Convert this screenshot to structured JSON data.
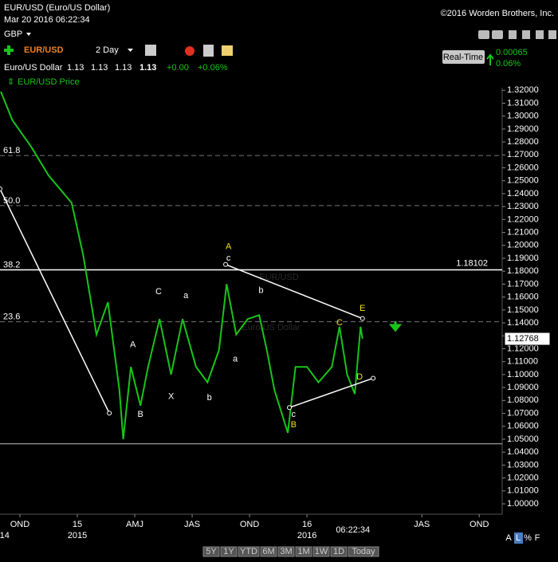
{
  "header": {
    "title": "EUR/USD (Euro/US Dollar)",
    "timestamp": "Mar 20 2016 06:22:34",
    "copyright": "©2016 Worden Brothers, Inc.",
    "currency": "GBP",
    "symbol": "EUR/USD",
    "period": "2 Day",
    "realtime": "Real-Time",
    "change": "0.00065",
    "change_pct": "0.06%"
  },
  "quote": {
    "name": "Euro/US Dollar",
    "open": "1.13",
    "high": "1.13",
    "low": "1.13",
    "close": "1.13",
    "net": "+0.00",
    "net_pct": "+0.06%"
  },
  "footer": {
    "ranges": [
      "5Y",
      "1Y",
      "YTD",
      "6M",
      "3M",
      "1M",
      "1W",
      "1D",
      "Today"
    ],
    "scale_buttons": [
      "A",
      "L",
      "%",
      "F"
    ]
  },
  "chart_data": {
    "type": "line",
    "watermark": "EUR/USD",
    "watermark_sub": "Euro/US Dollar",
    "x": [
      -1.0,
      -0.4,
      0.6,
      1.5,
      2.7,
      3.3,
      4.0,
      4.6,
      5.2,
      5.4,
      5.8,
      6.3,
      6.7,
      7.3,
      7.9,
      8.5,
      9.2,
      9.8,
      10.4,
      10.8,
      11.3,
      11.9,
      12.5,
      12.9,
      13.3,
      14.0,
      14.4,
      15.0,
      15.6,
      16.3,
      16.7,
      17.1,
      17.5,
      17.8,
      17.9
    ],
    "series": [
      {
        "name": "EUR/USD Price",
        "color": "#19c419",
        "values": [
          1.319,
          1.297,
          1.276,
          1.254,
          1.233,
          1.193,
          1.131,
          1.156,
          1.088,
          1.05,
          1.106,
          1.076,
          1.106,
          1.143,
          1.1,
          1.143,
          1.106,
          1.094,
          1.119,
          1.17,
          1.131,
          1.143,
          1.146,
          1.119,
          1.088,
          1.055,
          1.106,
          1.106,
          1.094,
          1.106,
          1.137,
          1.1,
          1.085,
          1.137,
          1.1277
        ]
      }
    ],
    "xlim": [
      -1.04,
      25.2
    ],
    "ylim": [
      0.992,
      1.322
    ],
    "xticks": [
      {
        "value": 0,
        "label": "OND"
      },
      {
        "value": 3,
        "label": "15"
      },
      {
        "value": 6,
        "label": "AMJ"
      },
      {
        "value": 9,
        "label": "JAS"
      },
      {
        "value": 12,
        "label": "OND"
      },
      {
        "value": 15,
        "label": "16"
      },
      {
        "value": 21,
        "label": "JAS"
      },
      {
        "value": 24,
        "label": "OND"
      }
    ],
    "year_labels": [
      {
        "value": -0.8,
        "label": "14"
      },
      {
        "value": 3,
        "label": "2015"
      },
      {
        "value": 15,
        "label": "2016"
      }
    ],
    "time_label": {
      "value": 17.4,
      "label": "06:22:34"
    },
    "yticks": [
      {
        "value": 1.0,
        "label": "1.00000"
      },
      {
        "value": 1.01,
        "label": "1.01000"
      },
      {
        "value": 1.02,
        "label": "1.02000"
      },
      {
        "value": 1.03,
        "label": "1.03000"
      },
      {
        "value": 1.04,
        "label": "1.04000"
      },
      {
        "value": 1.05,
        "label": "1.05000"
      },
      {
        "value": 1.06,
        "label": "1.06000"
      },
      {
        "value": 1.07,
        "label": "1.07000"
      },
      {
        "value": 1.08,
        "label": "1.08000"
      },
      {
        "value": 1.09,
        "label": "1.09000"
      },
      {
        "value": 1.1,
        "label": "1.10000"
      },
      {
        "value": 1.11,
        "label": "1.11000"
      },
      {
        "value": 1.12,
        "label": "1.12000"
      },
      {
        "value": 1.13,
        "label": "1.13000"
      },
      {
        "value": 1.14,
        "label": "1.14000"
      },
      {
        "value": 1.15,
        "label": "1.15000"
      },
      {
        "value": 1.16,
        "label": "1.16000"
      },
      {
        "value": 1.17,
        "label": "1.17000"
      },
      {
        "value": 1.18,
        "label": "1.18000"
      },
      {
        "value": 1.19,
        "label": "1.19000"
      },
      {
        "value": 1.2,
        "label": "1.20000"
      },
      {
        "value": 1.21,
        "label": "1.21000"
      },
      {
        "value": 1.22,
        "label": "1.22000"
      },
      {
        "value": 1.23,
        "label": "1.23000"
      },
      {
        "value": 1.24,
        "label": "1.24000"
      },
      {
        "value": 1.25,
        "label": "1.25000"
      },
      {
        "value": 1.26,
        "label": "1.26000"
      },
      {
        "value": 1.27,
        "label": "1.27000"
      },
      {
        "value": 1.28,
        "label": "1.28000"
      },
      {
        "value": 1.29,
        "label": "1.29000"
      },
      {
        "value": 1.3,
        "label": "1.30000"
      },
      {
        "value": 1.31,
        "label": "1.31000"
      },
      {
        "value": 1.32,
        "label": "1.32000"
      }
    ],
    "grid": false,
    "current_price": {
      "value": 1.12768,
      "label": "1.12768"
    },
    "price_line": {
      "value": 1.18102,
      "label": "1.18102"
    },
    "support_line": 1.0465,
    "fib_levels": [
      {
        "value": 1.2695,
        "label": "61.8"
      },
      {
        "value": 1.2308,
        "label": "50.0"
      },
      {
        "value": 1.18102,
        "label": "38.2"
      },
      {
        "value": 1.1409,
        "label": "23.6"
      }
    ],
    "trendlines": [
      {
        "x": [
          -1.04,
          4.67
        ],
        "y": [
          1.2437,
          1.0702
        ]
      },
      {
        "x": [
          10.75,
          17.9
        ],
        "y": [
          1.1852,
          1.1434
        ]
      },
      {
        "x": [
          14.08,
          18.46
        ],
        "y": [
          1.0745,
          1.0972
        ]
      }
    ],
    "wave_labels": [
      {
        "text": "A",
        "x": 10.9,
        "y": 1.1988,
        "color": "#f0e020"
      },
      {
        "text": "c",
        "x": 10.9,
        "y": 1.19,
        "color": "#ffffff"
      },
      {
        "text": "C",
        "x": 7.25,
        "y": 1.164,
        "color": "#ffffff"
      },
      {
        "text": "a",
        "x": 8.67,
        "y": 1.161,
        "color": "#ffffff"
      },
      {
        "text": "b",
        "x": 12.6,
        "y": 1.165,
        "color": "#ffffff"
      },
      {
        "text": "C",
        "x": 16.7,
        "y": 1.14,
        "color": "#f0e020"
      },
      {
        "text": "E",
        "x": 17.9,
        "y": 1.151,
        "color": "#f0e020"
      },
      {
        "text": "A",
        "x": 5.9,
        "y": 1.123,
        "color": "#ffffff"
      },
      {
        "text": "a",
        "x": 11.25,
        "y": 1.112,
        "color": "#ffffff"
      },
      {
        "text": "X",
        "x": 7.9,
        "y": 1.083,
        "color": "#ffffff"
      },
      {
        "text": "b",
        "x": 9.9,
        "y": 1.082,
        "color": "#ffffff"
      },
      {
        "text": "D",
        "x": 17.75,
        "y": 1.098,
        "color": "#f0e020"
      },
      {
        "text": "B",
        "x": 6.3,
        "y": 1.069,
        "color": "#ffffff"
      },
      {
        "text": "c",
        "x": 14.3,
        "y": 1.069,
        "color": "#ffffff"
      },
      {
        "text": "B",
        "x": 14.3,
        "y": 1.061,
        "color": "#f0e020"
      }
    ]
  }
}
